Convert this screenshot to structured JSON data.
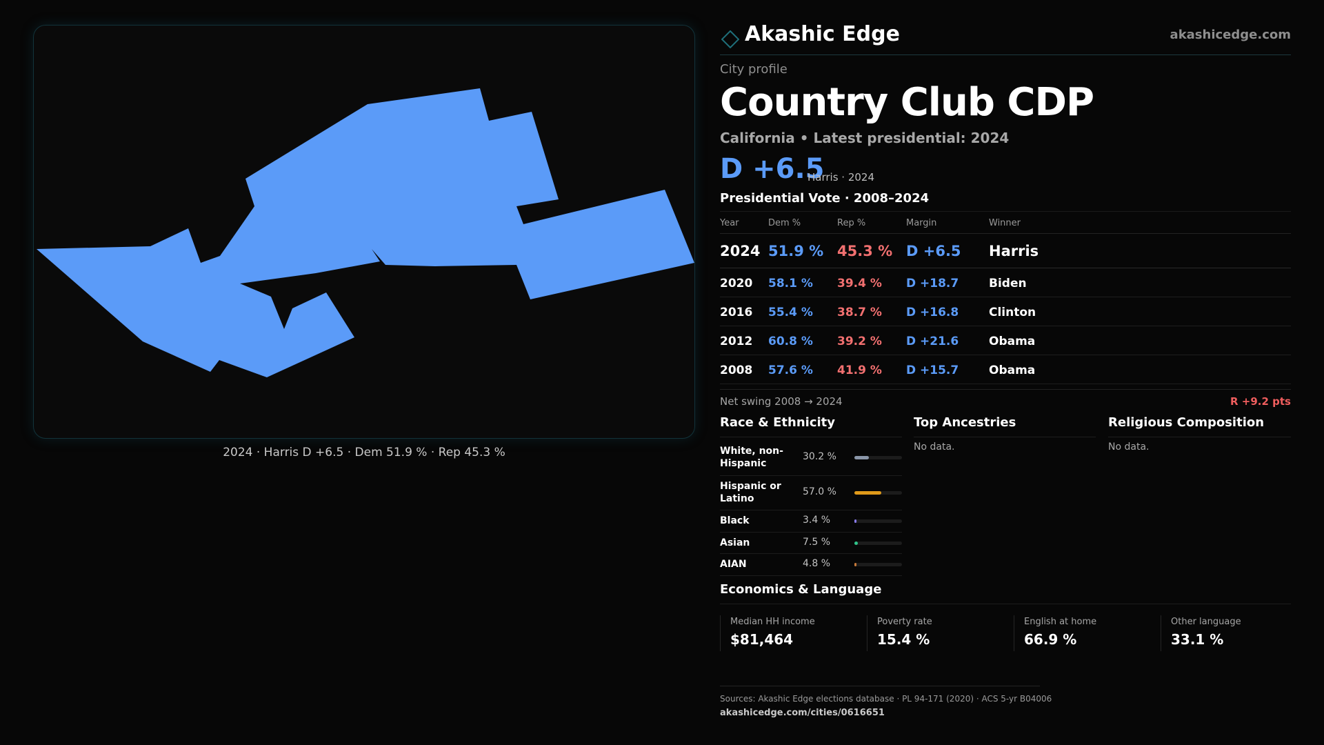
{
  "brand": {
    "name": "Akashic Edge",
    "url": "akashicedge.com",
    "logo_icon": "diamond-outline-icon",
    "accent": "#1f6f7a"
  },
  "map": {
    "fill_color": "#5b9bf8",
    "caption": "2024 · Harris D +6.5 · Dem 51.9 % · Rep 45.3 %"
  },
  "profile": {
    "kicker": "City profile",
    "title": "Country Club CDP",
    "subtitle": "California • Latest presidential: 2024",
    "margin": "D +6.5",
    "margin_note": "Harris · 2024"
  },
  "vote": {
    "title": "Presidential Vote · 2008–2024",
    "headers": {
      "year": "Year",
      "dem": "Dem %",
      "rep": "Rep %",
      "margin": "Margin",
      "winner": "Winner"
    },
    "rows": [
      {
        "year": "2024",
        "dem": "51.9 %",
        "rep": "45.3 %",
        "margin": "D +6.5",
        "winner": "Harris"
      },
      {
        "year": "2020",
        "dem": "58.1 %",
        "rep": "39.4 %",
        "margin": "D +18.7",
        "winner": "Biden"
      },
      {
        "year": "2016",
        "dem": "55.4 %",
        "rep": "38.7 %",
        "margin": "D +16.8",
        "winner": "Clinton"
      },
      {
        "year": "2012",
        "dem": "60.8 %",
        "rep": "39.2 %",
        "margin": "D +21.6",
        "winner": "Obama"
      },
      {
        "year": "2008",
        "dem": "57.6 %",
        "rep": "41.9 %",
        "margin": "D +15.7",
        "winner": "Obama"
      }
    ],
    "colors": {
      "dem": "#5b9bf8",
      "rep": "#f27070"
    }
  },
  "swing": {
    "label": "Net swing 2008 → 2024",
    "value": "R +9.2 pts"
  },
  "race": {
    "title": "Race & Ethnicity",
    "items": [
      {
        "name": "White, non-Hispanic",
        "pct": "30.2 %",
        "fraction": 0.302,
        "color": "#8a96a8"
      },
      {
        "name": "Hispanic or Latino",
        "pct": "57.0 %",
        "fraction": 0.57,
        "color": "#e09a1a"
      },
      {
        "name": "Black",
        "pct": "3.4 %",
        "fraction": 0.034,
        "color": "#8a7cf0"
      },
      {
        "name": "Asian",
        "pct": "7.5 %",
        "fraction": 0.075,
        "color": "#2fc48a"
      },
      {
        "name": "AIAN",
        "pct": "4.8 %",
        "fraction": 0.048,
        "color": "#c87a3a"
      }
    ]
  },
  "ancestries": {
    "title": "Top Ancestries",
    "empty": "No data."
  },
  "religion": {
    "title": "Religious Composition",
    "empty": "No data."
  },
  "economics": {
    "title": "Economics & Language",
    "items": [
      {
        "label": "Median HH income",
        "value": "$81,464"
      },
      {
        "label": "Poverty rate",
        "value": "15.4 %"
      },
      {
        "label": "English at home",
        "value": "66.9 %"
      },
      {
        "label": "Other language",
        "value": "33.1 %"
      }
    ]
  },
  "footer": {
    "sources": "Sources: Akashic Edge elections database · PL 94-171 (2020) · ACS 5-yr B04006",
    "url": "akashicedge.com/cities/0616651"
  }
}
